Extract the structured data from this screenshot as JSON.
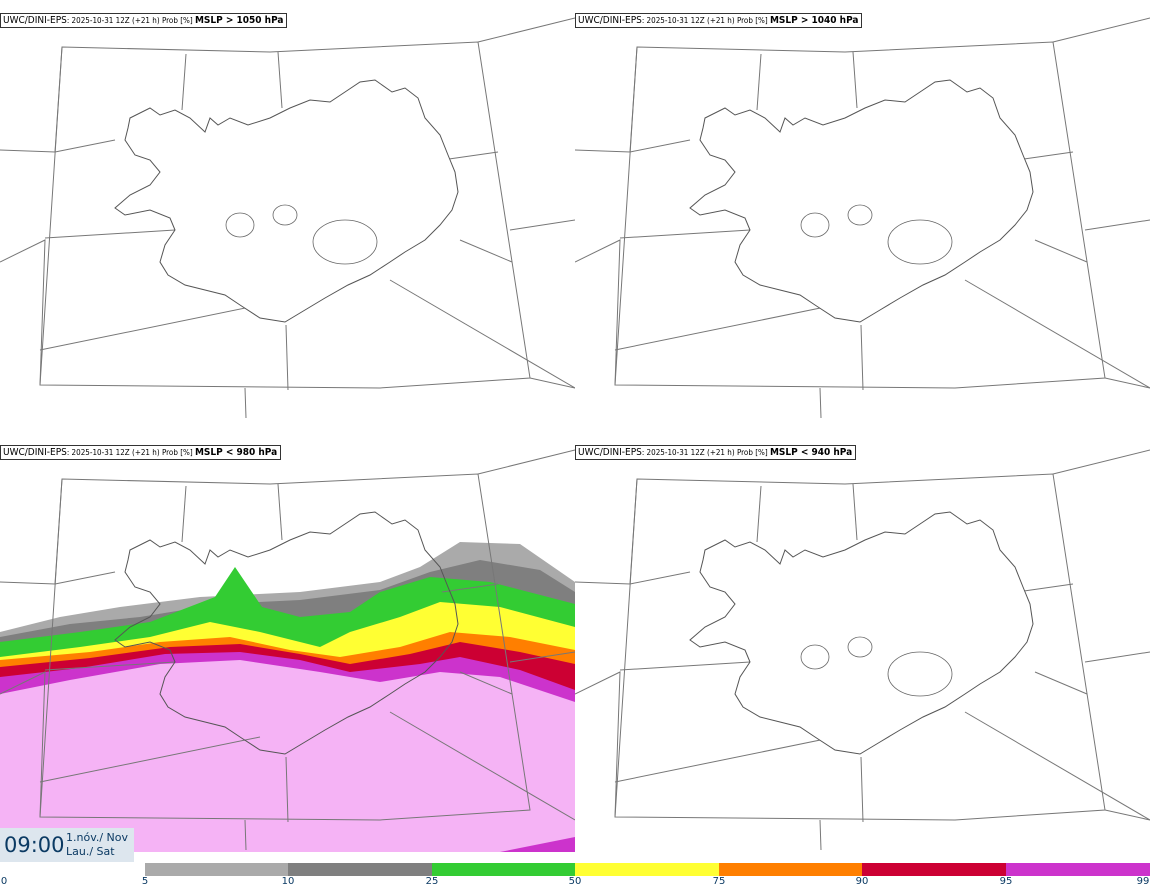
{
  "panels": [
    {
      "id": "p1",
      "model": "UWC/DINI-EPS",
      "meta": ": 2025-10-31 12Z (+21 h) Prob [%] ",
      "param": "MSLP > 1050 hPa",
      "filled": false
    },
    {
      "id": "p2",
      "model": "UWC/DINI-EPS",
      "meta": ": 2025-10-31 12Z (+21 h) Prob [%] ",
      "param": "MSLP > 1040 hPa",
      "filled": false
    },
    {
      "id": "p3",
      "model": "UWC/DINI-EPS",
      "meta": ": 2025-10-31 12Z (+21 h) Prob [%] ",
      "param": "MSLP < 980 hPa",
      "filled": true
    },
    {
      "id": "p4",
      "model": "UWC/DINI-EPS",
      "meta": ": 2025-10-31 12Z (+21 h) Prob [%] ",
      "param": "MSLP < 940 hPa",
      "filled": false
    }
  ],
  "time": {
    "clock": "09:00",
    "date_line1": "1.nóv./ Nov",
    "date_line2": "Lau./ Sat"
  },
  "colorbar": {
    "ticks": [
      "0",
      "5",
      "10",
      "25",
      "50",
      "75",
      "90",
      "95",
      "99"
    ],
    "colors": [
      "#ffffff",
      "#aaaaaa",
      "#7f7f7f",
      "#33cc33",
      "#ffff33",
      "#ff7f00",
      "#cc0033",
      "#cc33cc",
      "#f5b3f5"
    ]
  },
  "chart_data": {
    "type": "heatmap",
    "panels": [
      {
        "title": "MSLP > 1050 hPa",
        "max_probability_percent": 0
      },
      {
        "title": "MSLP > 1040 hPa",
        "max_probability_percent": 0
      },
      {
        "title": "MSLP < 980 hPa",
        "probability_bands_present": [
          "5-10",
          "10-25",
          "25-50",
          "50-75",
          "75-90",
          "90-95",
          "95-99",
          "99+"
        ]
      },
      {
        "title": "MSLP < 940 hPa",
        "max_probability_percent": 0
      }
    ],
    "color_bins": [
      0,
      5,
      10,
      25,
      50,
      75,
      90,
      95,
      99
    ]
  }
}
